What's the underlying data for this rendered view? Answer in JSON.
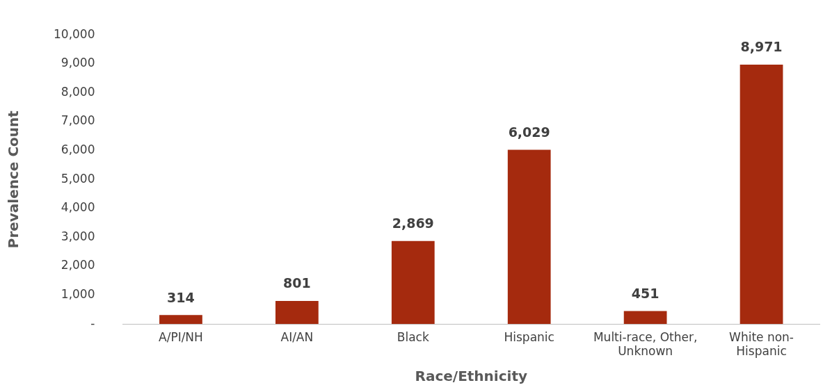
{
  "chart_data": {
    "type": "bar",
    "xlabel": "Race/Ethnicity",
    "ylabel": "Prevalence Count",
    "categories": [
      "A/PI/NH",
      "AI/AN",
      "Black",
      "Hispanic",
      "Multi-race, Other, Unknown",
      "White non-Hispanic"
    ],
    "values": [
      314,
      801,
      2869,
      6029,
      451,
      8971
    ],
    "color": "#a52a0e",
    "ylim": [
      0,
      10000
    ],
    "yticks": [
      {
        "value": 0,
        "label": "-"
      },
      {
        "value": 1000,
        "label": "1,000"
      },
      {
        "value": 2000,
        "label": "2,000"
      },
      {
        "value": 3000,
        "label": "3,000"
      },
      {
        "value": 4000,
        "label": "4,000"
      },
      {
        "value": 5000,
        "label": "5,000"
      },
      {
        "value": 6000,
        "label": "6,000"
      },
      {
        "value": 7000,
        "label": "7,000"
      },
      {
        "value": 8000,
        "label": "8,000"
      },
      {
        "value": 9000,
        "label": "9,000"
      },
      {
        "value": 10000,
        "label": "10,000"
      }
    ],
    "value_labels": [
      "314",
      "801",
      "2,869",
      "6,029",
      "451",
      "8,971"
    ],
    "grid": false,
    "legend": false
  }
}
